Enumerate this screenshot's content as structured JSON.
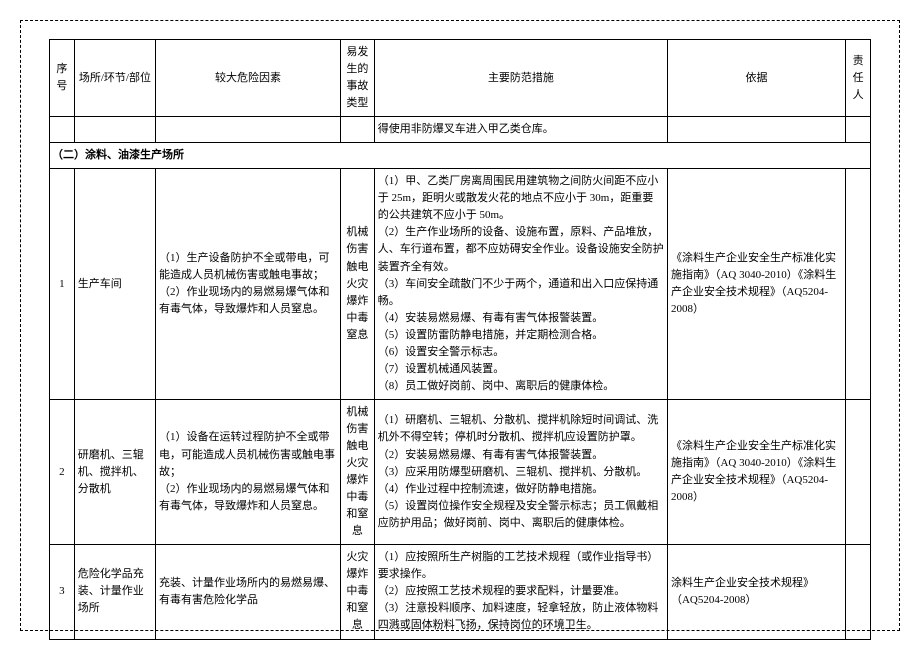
{
  "headers": {
    "seq": "序号",
    "place": "场所/环节/部位",
    "risk": "较大危险因素",
    "type": "易发生的事故类型",
    "measures": "主要防范措施",
    "basis": "依据",
    "resp": "责任人"
  },
  "pre_row_measures": "得使用非防爆叉车进入甲乙类仓库。",
  "section_title": "（二）涂料、油漆生产场所",
  "rows": [
    {
      "seq": "1",
      "place": "生产车间",
      "risk": "（1）生产设备防护不全或带电，可能造成人员机械伤害或触电事故；\n（2）作业现场内的易燃易爆气体和有毒气体，导致爆炸和人员窒息。",
      "type": "机械伤害触电火灾爆炸中毒窒息",
      "measures": "（1）甲、乙类厂房离周围民用建筑物之间防火间距不应小于 25m，距明火或散发火花的地点不应小于 30m，距重要的公共建筑不应小于 50m。\n（2）生产作业场所的设备、设施布置，原料、产品堆放，人、车行道布置，都不应妨碍安全作业。设备设施安全防护装置齐全有效。\n（3）车间安全疏散门不少于两个，通道和出入口应保持通畅。\n（4）安装易燃易爆、有毒有害气体报警装置。\n（5）设置防雷防静电措施，并定期检测合格。\n（6）设置安全警示标志。\n（7）设置机械通风装置。\n（8）员工做好岗前、岗中、离职后的健康体检。",
      "basis": "《涂料生产企业安全生产标准化实施指南》（AQ 3040-2010）《涂料生产企业安全技术规程》（AQ5204-2008）"
    },
    {
      "seq": "2",
      "place": "研磨机、三辊机、搅拌机、分散机",
      "risk": "（1）设备在运转过程防护不全或带电，可能造成人员机械伤害或触电事故；\n（2）作业现场内的易燃易爆气体和有毒气体，导致爆炸和人员窒息。",
      "type": "机械伤害触电火灾爆炸中毒和窒息",
      "measures": "（1）研磨机、三辊机、分散机、搅拌机除短时间调试、洗机外不得空转；停机时分散机、搅拌机应设置防护罩。\n（2）安装易燃易爆、有毒有害气体报警装置。\n（3）应采用防爆型研磨机、三辊机、搅拌机、分散机。\n（4）作业过程中控制流速，做好防静电措施。\n（5）设置岗位操作安全规程及安全警示标志；员工佩戴相应防护用品；做好岗前、岗中、离职后的健康体检。",
      "basis": "《涂料生产企业安全生产标准化实施指南》（AQ 3040-2010）《涂料生产企业安全技术规程》（AQ5204-2008）"
    },
    {
      "seq": "3",
      "place": "危险化学品充装、计量作业场所",
      "risk": "充装、计量作业场所内的易燃易爆、有毒有害危险化学品",
      "type": "火灾爆炸中毒和窒息",
      "measures": "（1）应按照所生产树脂的工艺技术规程（或作业指导书）要求操作。\n（2）应按照工艺技术规程的要求配料，计量要准。\n（3）注意投料顺序、加料速度，轻拿轻放，防止液体物料四溅或固体粉料飞扬，保持岗位的环境卫生。",
      "basis": "涂料生产企业安全技术规程》（AQ5204-2008）"
    }
  ]
}
